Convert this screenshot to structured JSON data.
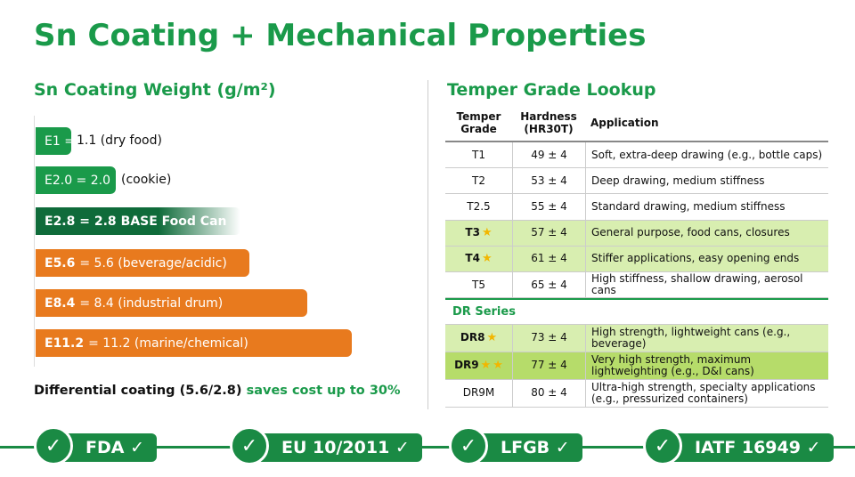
{
  "title": "Sn Coating + Mechanical Properties",
  "left": {
    "heading": "Sn Coating Weight (g/m²)",
    "items": [
      {
        "label": "E1 =",
        "detail": "1.1 (dry food)"
      },
      {
        "label": "E2.0 = 2.0",
        "detail": "(cookie)"
      },
      {
        "label": "E2.8 = 2.8",
        "detail": "BASE Food Can"
      },
      {
        "label": "E5.6",
        "detail": "= 5.6 (beverage/acidic)"
      },
      {
        "label": "E8.4",
        "detail": "= 8.4 (industrial drum)"
      },
      {
        "label": "E11.2",
        "detail": "= 11.2 (marine/chemical)"
      }
    ],
    "note": "Differential coating (5.6/2.8)",
    "note_highlight": "saves cost up to 30%"
  },
  "right": {
    "heading": "Temper Grade Lookup",
    "headers": [
      "Temper Grade",
      "Hardness (HR30T)",
      "Application"
    ],
    "rows": [
      {
        "grade": "T1",
        "hardness": "49 ± 4",
        "application": "Soft, extra-deep drawing (e.g., bottle caps)",
        "stars": 0
      },
      {
        "grade": "T2",
        "hardness": "53 ± 4",
        "application": "Deep drawing, medium stiffness",
        "stars": 0
      },
      {
        "grade": "T2.5",
        "hardness": "55 ± 4",
        "application": "Standard drawing, medium stiffness",
        "stars": 0
      },
      {
        "grade": "T3",
        "hardness": "57 ± 4",
        "application": "General purpose, food cans, closures",
        "stars": 1
      },
      {
        "grade": "T4",
        "hardness": "61 ± 4",
        "application": "Stiffer applications, easy opening ends",
        "stars": 1
      },
      {
        "grade": "T5",
        "hardness": "65 ± 4",
        "application": "High stiffness, shallow drawing, aerosol cans",
        "stars": 0
      }
    ],
    "section": "DR Series",
    "dr_rows": [
      {
        "grade": "DR8",
        "hardness": "73 ± 4",
        "application": "High strength, lightweight cans (e.g., beverage)",
        "stars": 1
      },
      {
        "grade": "DR9",
        "hardness": "77 ± 4",
        "application": "Very high strength, maximum lightweighting (e.g., D&I cans)",
        "stars": 2
      },
      {
        "grade": "DR9M",
        "hardness": "80 ± 4",
        "application": "Ultra-high strength, specialty applications (e.g., pressurized containers)",
        "stars": 0
      }
    ]
  },
  "badges": [
    "FDA ✓",
    "EU 10/2011 ✓",
    "LFGB ✓",
    "IATF 16949 ✓"
  ]
}
